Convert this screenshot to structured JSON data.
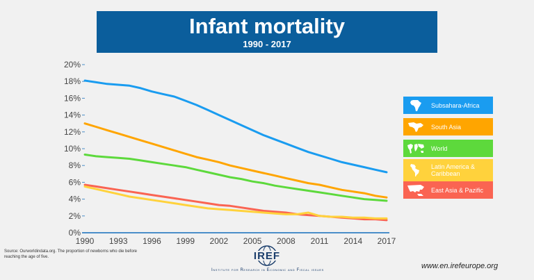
{
  "header": {
    "title": "Infant mortality",
    "subtitle": "1990 - 2017"
  },
  "chart_data": {
    "type": "line",
    "title": "Infant mortality",
    "subtitle": "1990 - 2017",
    "xlabel": "",
    "ylabel": "",
    "x": [
      1990,
      1991,
      1992,
      1993,
      1994,
      1995,
      1996,
      1997,
      1998,
      1999,
      2000,
      2001,
      2002,
      2003,
      2004,
      2005,
      2006,
      2007,
      2008,
      2009,
      2010,
      2011,
      2012,
      2013,
      2014,
      2015,
      2016,
      2017
    ],
    "xticks": [
      "1990",
      "1993",
      "1996",
      "1999",
      "2002",
      "2005",
      "2008",
      "2011",
      "2014",
      "2017"
    ],
    "yticks": [
      "0%",
      "2%",
      "4%",
      "6%",
      "8%",
      "10%",
      "12%",
      "14%",
      "16%",
      "18%",
      "20%"
    ],
    "ylim": [
      0,
      20
    ],
    "xlim": [
      1990,
      2017
    ],
    "grid": false,
    "legend_position": "right",
    "series": [
      {
        "name": "Subsahara-Africa",
        "color": "#1a9cf0",
        "values": [
          18.1,
          17.9,
          17.7,
          17.6,
          17.5,
          17.2,
          16.8,
          16.5,
          16.2,
          15.7,
          15.2,
          14.6,
          14.0,
          13.4,
          12.8,
          12.2,
          11.6,
          11.1,
          10.6,
          10.1,
          9.6,
          9.2,
          8.8,
          8.4,
          8.1,
          7.8,
          7.5,
          7.2
        ]
      },
      {
        "name": "South Asia",
        "color": "#ffa500",
        "values": [
          13.0,
          12.6,
          12.2,
          11.8,
          11.4,
          11.0,
          10.6,
          10.2,
          9.8,
          9.4,
          9.0,
          8.7,
          8.4,
          8.0,
          7.7,
          7.4,
          7.1,
          6.8,
          6.5,
          6.2,
          5.9,
          5.7,
          5.4,
          5.1,
          4.9,
          4.7,
          4.4,
          4.2
        ]
      },
      {
        "name": "World",
        "color": "#5dd93c",
        "values": [
          9.3,
          9.1,
          9.0,
          8.9,
          8.8,
          8.6,
          8.4,
          8.2,
          8.0,
          7.8,
          7.5,
          7.2,
          6.9,
          6.6,
          6.4,
          6.1,
          5.9,
          5.6,
          5.4,
          5.2,
          5.0,
          4.8,
          4.6,
          4.4,
          4.2,
          4.0,
          3.9,
          3.8
        ]
      },
      {
        "name": "Latin America & Caribbean",
        "color": "#ffd23c",
        "values": [
          5.5,
          5.2,
          4.9,
          4.6,
          4.3,
          4.1,
          3.9,
          3.7,
          3.5,
          3.3,
          3.1,
          2.9,
          2.8,
          2.7,
          2.6,
          2.5,
          2.4,
          2.3,
          2.2,
          2.2,
          2.4,
          2.0,
          1.9,
          1.9,
          1.8,
          1.8,
          1.7,
          1.7
        ]
      },
      {
        "name": "East Asia & Pazific",
        "color": "#fa6452",
        "values": [
          5.7,
          5.5,
          5.3,
          5.1,
          4.9,
          4.7,
          4.5,
          4.3,
          4.1,
          3.9,
          3.7,
          3.5,
          3.3,
          3.2,
          3.0,
          2.8,
          2.6,
          2.5,
          2.4,
          2.2,
          2.1,
          2.0,
          1.9,
          1.8,
          1.7,
          1.6,
          1.6,
          1.5
        ]
      }
    ]
  },
  "legend": [
    {
      "label": "Subsahara-Africa",
      "icon": "africa-map-icon",
      "color": "#1a9cf0"
    },
    {
      "label": "South Asia",
      "icon": "south-asia-map-icon",
      "color": "#ffa500"
    },
    {
      "label": "World",
      "icon": "world-map-icon",
      "color": "#5dd93c"
    },
    {
      "label": "Latin America & Caribbean",
      "icon": "latin-america-map-icon",
      "color": "#ffd23c"
    },
    {
      "label": "East Asia & Pazific",
      "icon": "east-asia-map-icon",
      "color": "#fa6452"
    }
  ],
  "footer": {
    "source": "Source: Ourworldindata.org. The proportion of newborns who die before reaching the age of five.",
    "logo_text": "IREF",
    "institute": "Institute for Research in Economic and Fiscal issues",
    "website": "www.en.irefeurope.org"
  },
  "colors": {
    "title_bg": "#0b5e9c",
    "axis": "#4a8ec9",
    "background": "#f1f1f1"
  }
}
